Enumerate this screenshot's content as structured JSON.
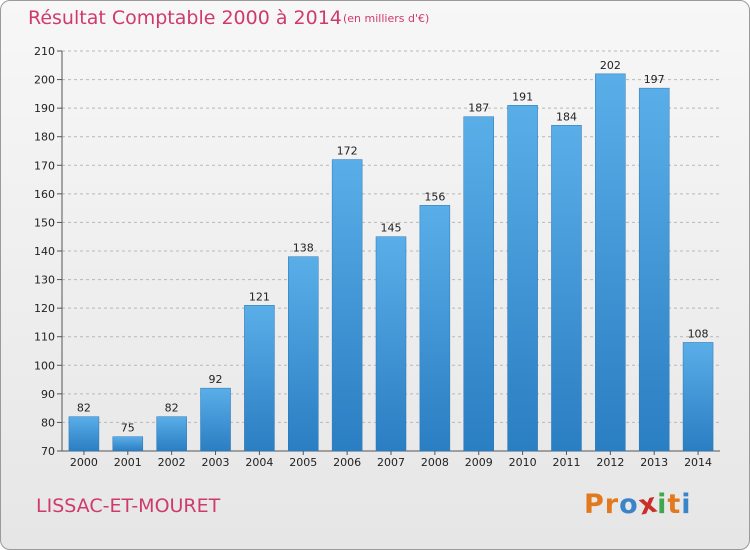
{
  "title": "Résultat Comptable 2000 à 2014",
  "subtitle": "(en milliers d'€)",
  "commune": "LISSAC-ET-MOURET",
  "logo": [
    "P",
    "r",
    "o",
    "x",
    "i",
    "t",
    "i"
  ],
  "colors": {
    "title": "#cf3a6e",
    "bar_top": "#5aaee8",
    "bar_bottom": "#2a7ec2",
    "logo": [
      "#e2791f",
      "#e2791f",
      "#3a84c8",
      "#c9302c",
      "#3ea84a",
      "#e2791f",
      "#3a84c8"
    ]
  },
  "chart_data": {
    "type": "bar",
    "title": "Résultat Comptable 2000 à 2014",
    "subtitle": "(en milliers d'€)",
    "categories": [
      "2000",
      "2001",
      "2002",
      "2003",
      "2004",
      "2005",
      "2006",
      "2007",
      "2008",
      "2009",
      "2010",
      "2011",
      "2012",
      "2013",
      "2014"
    ],
    "values": [
      82,
      75,
      82,
      92,
      121,
      138,
      172,
      145,
      156,
      187,
      191,
      184,
      202,
      197,
      108
    ],
    "ylim": [
      70,
      210
    ],
    "yticks": [
      70,
      80,
      90,
      100,
      110,
      120,
      130,
      140,
      150,
      160,
      170,
      180,
      190,
      200,
      210
    ],
    "grid": "horizontal dashed",
    "legend": "none"
  }
}
